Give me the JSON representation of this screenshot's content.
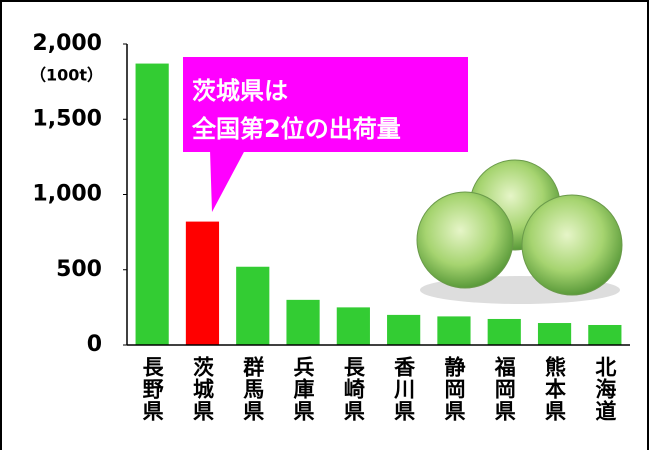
{
  "chart_data": {
    "type": "bar",
    "y_label": "（100t）",
    "annotation": [
      "茨城県は",
      "全国第2位の出荷量"
    ],
    "categories": [
      "長野県",
      "茨城県",
      "群馬県",
      "兵庫県",
      "長崎県",
      "香川県",
      "静岡県",
      "福岡県",
      "熊本県",
      "北海道"
    ],
    "values": [
      1870,
      820,
      520,
      300,
      250,
      200,
      190,
      173,
      146,
      133
    ],
    "colors": [
      "#33cc33",
      "#ff0000",
      "#33cc33",
      "#33cc33",
      "#33cc33",
      "#33cc33",
      "#33cc33",
      "#33cc33",
      "#33cc33",
      "#33cc33"
    ],
    "ylim": [
      0,
      2000
    ],
    "yticks": [
      0,
      500,
      {
        "value": 1000,
        "label": "1,000"
      },
      {
        "value": 1500,
        "label": "1,500"
      },
      {
        "value": 2000,
        "label": "2,000"
      }
    ],
    "grid": false
  }
}
